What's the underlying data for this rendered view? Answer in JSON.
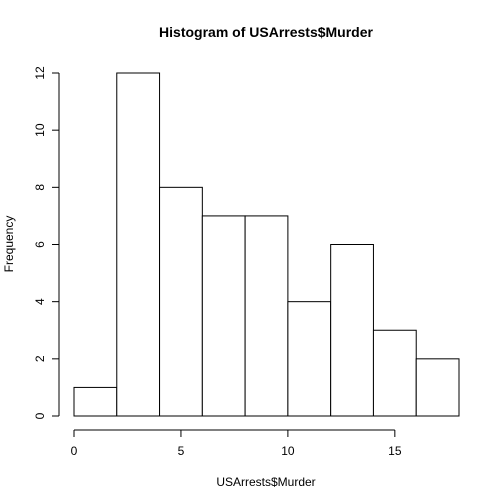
{
  "chart_data": {
    "type": "bar",
    "title": "Histogram of USArrests$Murder",
    "xlabel": "USArrests$Murder",
    "ylabel": "Frequency",
    "bin_edges": [
      0,
      2,
      4,
      6,
      8,
      10,
      12,
      14,
      16,
      18
    ],
    "values": [
      1,
      12,
      8,
      7,
      7,
      4,
      6,
      3,
      2
    ],
    "xlim": [
      0,
      18
    ],
    "ylim": [
      0,
      12
    ],
    "xticks": [
      0,
      5,
      10,
      15
    ],
    "yticks": [
      0,
      2,
      4,
      6,
      8,
      10,
      12
    ],
    "grid": false,
    "bar_fill": "#ffffff",
    "bar_stroke": "#000000"
  }
}
